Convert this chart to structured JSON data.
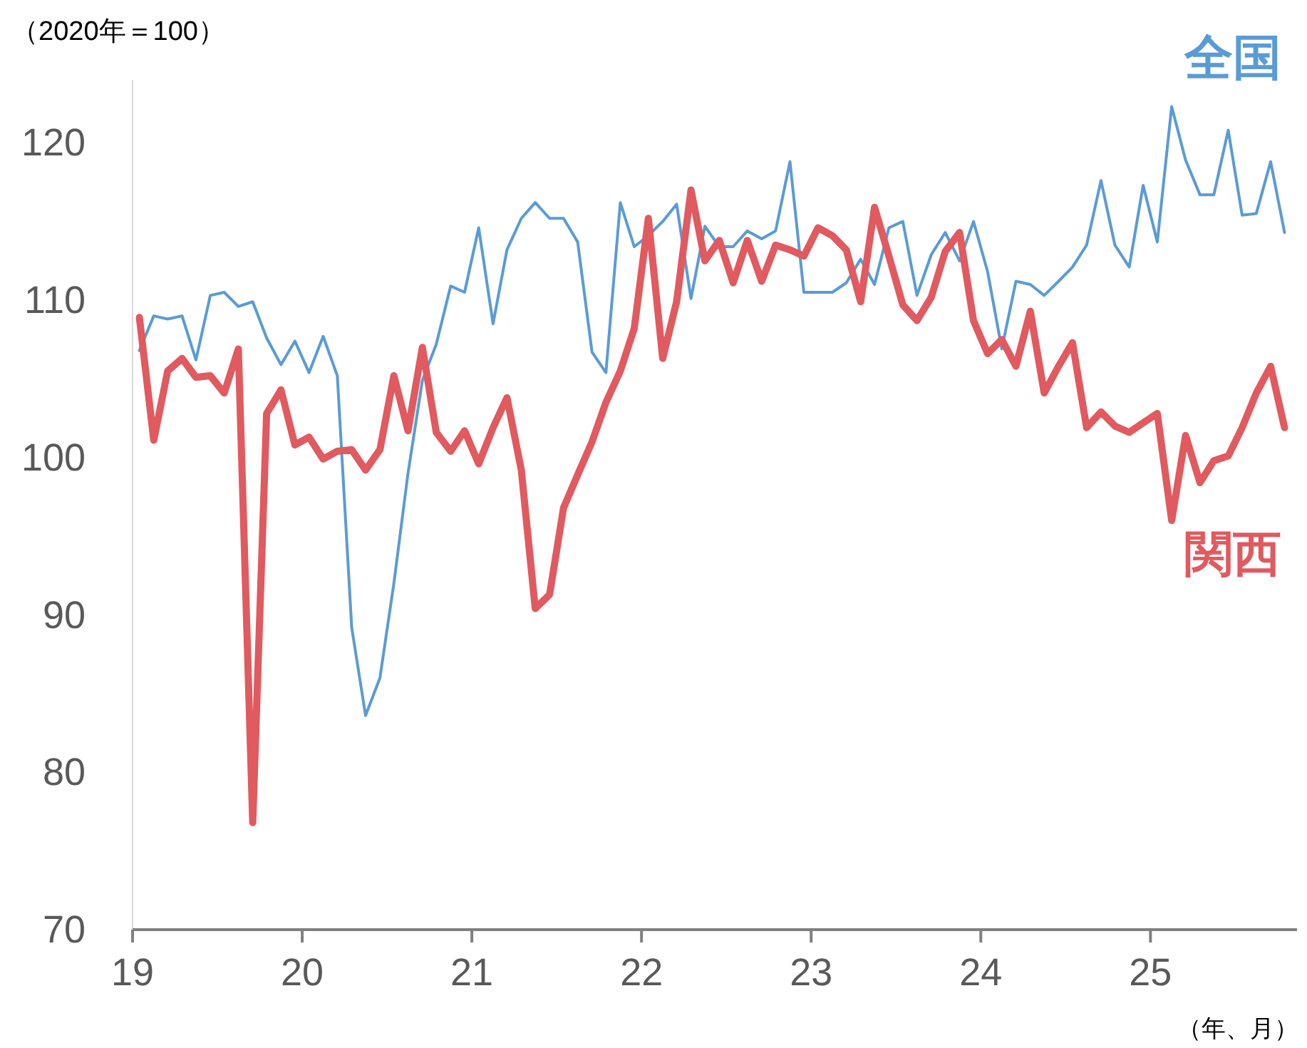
{
  "chart_data": {
    "type": "line",
    "ylabel": "（2020年＝100）",
    "xlabel": "（年、月）",
    "x": [
      "2019-01-16",
      "2019-02-15",
      "2019-03-16",
      "2019-04-16",
      "2019-05-16",
      "2019-06-16",
      "2019-07-16",
      "2019-08-16",
      "2019-09-16",
      "2019-10-16",
      "2019-11-16",
      "2019-12-16",
      "2020-01-16",
      "2020-02-15",
      "2020-03-16",
      "2020-04-16",
      "2020-05-16",
      "2020-06-16",
      "2020-07-16",
      "2020-08-16",
      "2020-09-16",
      "2020-10-16",
      "2020-11-16",
      "2020-12-16",
      "2021-01-16",
      "2021-02-15",
      "2021-03-16",
      "2021-04-16",
      "2021-05-16",
      "2021-06-16",
      "2021-07-16",
      "2021-08-16",
      "2021-09-16",
      "2021-10-16",
      "2021-11-16",
      "2021-12-16",
      "2022-01-16",
      "2022-02-15",
      "2022-03-16",
      "2022-04-16",
      "2022-05-16",
      "2022-06-16",
      "2022-07-16",
      "2022-08-16",
      "2022-09-16",
      "2022-10-16",
      "2022-11-16",
      "2022-12-16",
      "2023-01-16",
      "2023-02-15",
      "2023-03-16",
      "2023-04-16",
      "2023-05-16",
      "2023-06-16",
      "2023-07-16",
      "2023-08-16",
      "2023-09-16",
      "2023-10-16",
      "2023-11-16",
      "2023-12-16",
      "2024-01-16",
      "2024-02-15",
      "2024-03-16",
      "2024-04-16",
      "2024-05-16",
      "2024-06-16",
      "2024-07-16",
      "2024-08-16",
      "2024-09-16",
      "2024-10-16",
      "2024-11-16",
      "2024-12-16",
      "2025-01-16",
      "2025-02-15",
      "2025-03-16",
      "2025-04-16",
      "2025-05-16",
      "2025-06-16",
      "2025-07-16",
      "2025-08-16",
      "2025-09-16",
      "2025-10-16"
    ],
    "series": [
      {
        "name": "全国",
        "color": "#5b9bd5",
        "values": [
          106.8,
          109.0,
          108.8,
          109.0,
          106.2,
          110.3,
          110.5,
          109.6,
          109.9,
          107.6,
          105.9,
          107.4,
          105.4,
          107.7,
          105.2,
          89.2,
          83.6,
          86.0,
          92.0,
          99.0,
          104.9,
          107.2,
          110.9,
          110.5,
          114.6,
          108.5,
          113.2,
          115.2,
          116.2,
          115.2,
          115.2,
          113.7,
          106.7,
          105.4,
          116.2,
          113.4,
          114.1,
          115.0,
          116.1,
          110.1,
          114.7,
          113.4,
          113.4,
          114.4,
          113.9,
          114.4,
          118.8,
          110.5,
          110.5,
          110.5,
          111.1,
          112.6,
          111.0,
          114.6,
          115.0,
          110.3,
          112.9,
          114.3,
          112.5,
          115.0,
          111.8,
          106.9,
          111.2,
          111.0,
          110.3,
          111.2,
          112.1,
          113.5,
          117.6,
          113.5,
          112.1,
          117.3,
          113.7,
          122.3,
          118.9,
          116.7,
          116.7,
          120.8,
          115.4,
          115.5,
          118.8,
          114.3
        ]
      },
      {
        "name": "関西",
        "color": "#e05a5f",
        "values": [
          108.9,
          101.1,
          105.5,
          106.3,
          105.1,
          105.2,
          104.1,
          106.9,
          76.8,
          102.8,
          104.3,
          100.8,
          101.3,
          99.9,
          100.4,
          100.5,
          99.2,
          100.5,
          105.2,
          101.7,
          107.0,
          101.6,
          100.4,
          101.7,
          99.6,
          101.9,
          103.8,
          99.2,
          90.4,
          91.3,
          96.8,
          98.9,
          101.0,
          103.5,
          105.5,
          108.2,
          115.2,
          106.3,
          109.9,
          117.0,
          112.5,
          113.8,
          111.1,
          113.8,
          111.2,
          113.5,
          113.2,
          112.8,
          114.6,
          114.1,
          113.2,
          109.9,
          115.9,
          112.8,
          109.7,
          108.7,
          110.2,
          113.1,
          114.3,
          108.7,
          106.6,
          107.5,
          105.8,
          109.3,
          104.1,
          105.8,
          107.3,
          101.9,
          102.9,
          102.0,
          101.6,
          102.2,
          102.8,
          96.0,
          101.4,
          98.4,
          99.8,
          100.1,
          101.9,
          104.1,
          105.8,
          101.9
        ]
      }
    ],
    "xlim": [
      "2019-01-01",
      "2025-11-12"
    ],
    "xticks": [
      {
        "value": "2019-01-01",
        "label": "19"
      },
      {
        "value": "2020-01-01",
        "label": "20"
      },
      {
        "value": "2021-01-01",
        "label": "21"
      },
      {
        "value": "2022-01-01",
        "label": "22"
      },
      {
        "value": "2023-01-01",
        "label": "23"
      },
      {
        "value": "2024-01-01",
        "label": "24"
      },
      {
        "value": "2025-01-01",
        "label": "25"
      }
    ],
    "ylim": [
      70,
      124
    ],
    "yticks": [
      70,
      80,
      90,
      100,
      110,
      120
    ],
    "grid": false,
    "legend": false,
    "marker": "none",
    "line_style": "solid"
  }
}
